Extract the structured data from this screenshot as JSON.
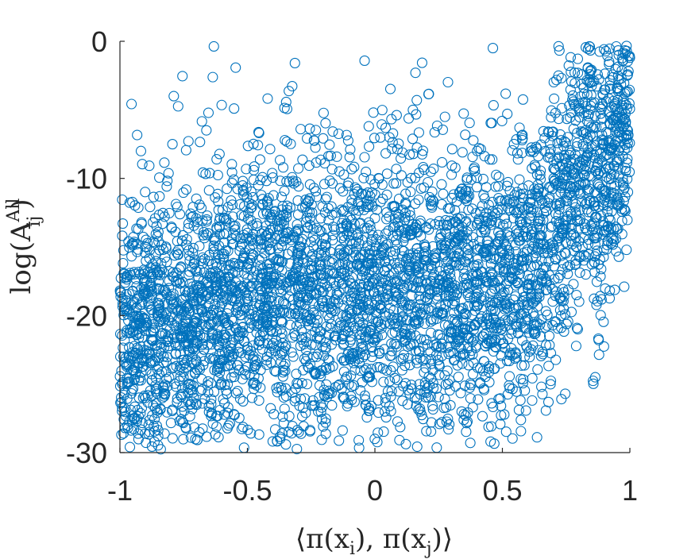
{
  "chart_data": {
    "type": "scatter",
    "marker": "open-circle",
    "color": "#0072bd",
    "xlabel": "⟨π(x_i), π(x_j)⟩",
    "ylabel": "log(A_ij^All)",
    "xlim": [
      -1,
      1
    ],
    "ylim": [
      -30,
      0
    ],
    "xticks": [
      -1,
      -0.5,
      0,
      0.5,
      1
    ],
    "xtick_labels": [
      "-1",
      "-0.5",
      "0",
      "0.5",
      "1"
    ],
    "yticks": [
      -30,
      -20,
      -10,
      0
    ],
    "ytick_labels": [
      "-30",
      "-20",
      "-10",
      "0"
    ],
    "grid": false,
    "series": [
      {
        "values_description_count": 0,
        "x": [
          -0.98,
          -0.96,
          -0.95,
          -0.93,
          -0.92,
          -0.9,
          -0.88,
          -0.87,
          -0.85,
          -0.83,
          -0.82,
          -0.8,
          -0.78,
          -0.77,
          -0.75,
          -0.73,
          -0.71,
          -0.7,
          -0.68,
          -0.66,
          -0.64,
          -0.62,
          -0.6,
          -0.58,
          -0.56,
          -0.54,
          -0.52,
          -0.5,
          -0.48,
          -0.46,
          -0.44,
          -0.42,
          -0.4,
          -0.38,
          -0.36,
          -0.34,
          -0.32,
          -0.3,
          -0.28,
          -0.26,
          -0.24,
          -0.22,
          -0.2,
          -0.18,
          -0.16,
          -0.14,
          -0.12,
          -0.1,
          -0.08,
          -0.06,
          -0.04,
          -0.02,
          0.0,
          0.02,
          0.04,
          0.06,
          0.08,
          0.1,
          0.12,
          0.14,
          0.16,
          0.18,
          0.2,
          0.22,
          0.24,
          0.26,
          0.28,
          0.3,
          0.32,
          0.34,
          0.36,
          0.38,
          0.4,
          0.42,
          0.44,
          0.46,
          0.48,
          0.5,
          0.52,
          0.54,
          0.56,
          0.58,
          0.6,
          0.62,
          0.64,
          0.66,
          0.68,
          0.7,
          0.72,
          0.74,
          0.76,
          0.78,
          0.8,
          0.82,
          0.84,
          0.86,
          0.88,
          0.9,
          0.92,
          0.94,
          0.96,
          0.97,
          0.98,
          0.99,
          1.0
        ],
        "y": [
          -19.5,
          -21.0,
          -18.2,
          -22.5,
          -17.0,
          -20.3,
          -16.5,
          -23.4,
          -19.1,
          -15.2,
          -21.8,
          -18.6,
          -20.9,
          -17.4,
          -24.1,
          -19.8,
          -16.2,
          -22.0,
          -18.9,
          -13.0,
          -20.5,
          -17.8,
          -15.5,
          -21.6,
          -18.1,
          -19.4,
          -14.8,
          -22.3,
          -17.2,
          -20.0,
          -16.6,
          -18.4,
          -21.2,
          -15.9,
          -19.0,
          -17.6,
          -23.0,
          -16.1,
          -18.7,
          -20.7,
          -15.0,
          -19.3,
          -17.1,
          -21.4,
          -16.9,
          -18.3,
          -14.5,
          -20.2,
          -17.9,
          -16.4,
          -19.6,
          -15.6,
          -17.3,
          -18.8,
          -16.0,
          -20.6,
          -15.3,
          -17.7,
          -14.2,
          -19.2,
          -16.7,
          -18.0,
          -13.6,
          -17.5,
          -15.8,
          -19.9,
          -14.0,
          -16.3,
          -18.5,
          -12.8,
          -15.1,
          -17.0,
          -13.4,
          -16.8,
          -14.6,
          -18.2,
          -12.5,
          -15.4,
          -13.9,
          -17.3,
          -14.3,
          -16.0,
          -12.2,
          -15.7,
          -13.1,
          -17.1,
          -11.8,
          -14.9,
          -12.7,
          -16.2,
          -11.2,
          -14.1,
          -10.5,
          -13.3,
          -9.8,
          -12.0,
          -8.6,
          -10.9,
          -7.4,
          -9.1,
          -6.2,
          -5.0,
          -3.8,
          -2.5,
          -1.2
        ]
      }
    ]
  }
}
